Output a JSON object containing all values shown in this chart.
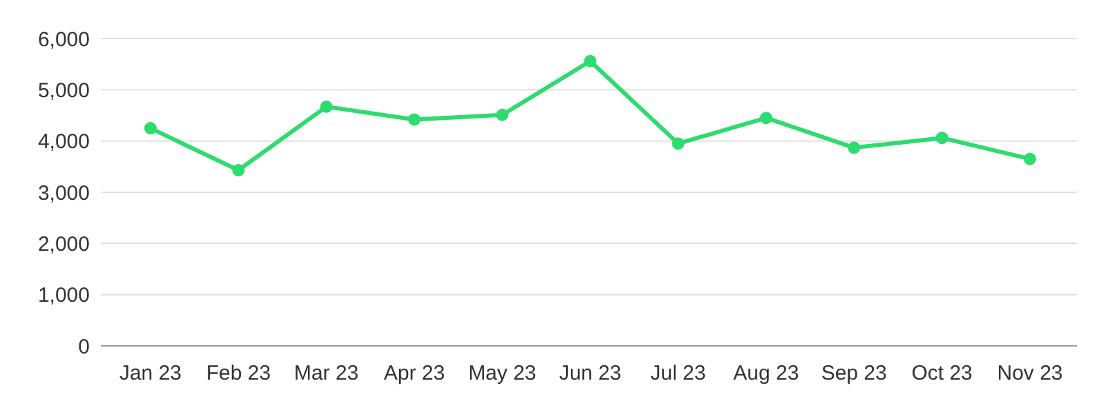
{
  "chart_data": {
    "type": "line",
    "categories": [
      "Jan 23",
      "Feb 23",
      "Mar 23",
      "Apr 23",
      "May 23",
      "Jun 23",
      "Jul 23",
      "Aug 23",
      "Sep 23",
      "Oct 23",
      "Nov 23"
    ],
    "series": [
      {
        "color": "#2edb6f",
        "values": [
          4250,
          3430,
          4670,
          4420,
          4510,
          5560,
          3950,
          4450,
          3870,
          4060,
          3650
        ]
      }
    ],
    "ylim": [
      0,
      6000
    ],
    "yticks": [
      {
        "value": 0,
        "label": "0"
      },
      {
        "value": 1000,
        "label": "1,000"
      },
      {
        "value": 2000,
        "label": "2,000"
      },
      {
        "value": 3000,
        "label": "3,000"
      },
      {
        "value": 4000,
        "label": "4,000"
      },
      {
        "value": 5000,
        "label": "5,000"
      },
      {
        "value": 6000,
        "label": "6,000"
      }
    ],
    "grid": "y",
    "marker": "circle",
    "line_style": "solid"
  }
}
